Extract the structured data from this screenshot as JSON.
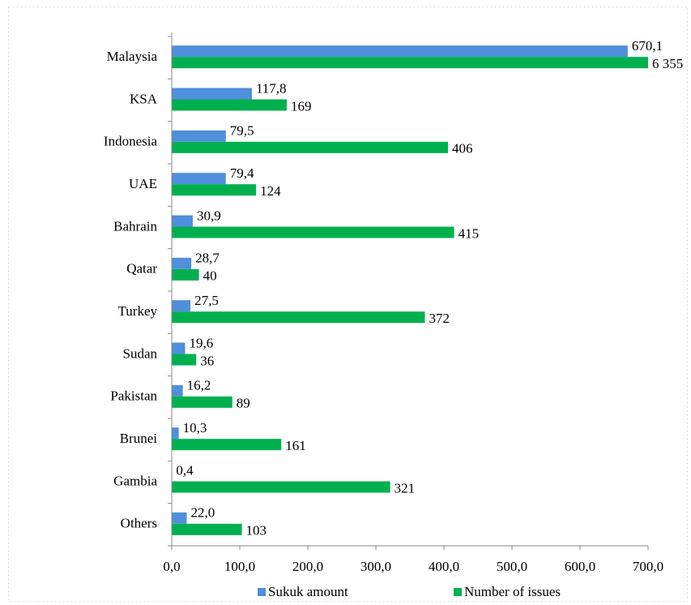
{
  "chart_data": {
    "type": "bar",
    "orientation": "horizontal",
    "categories": [
      "Malaysia",
      "KSA",
      "Indonesia",
      "UAE",
      "Bahrain",
      "Qatar",
      "Turkey",
      "Sudan",
      "Pakistan",
      "Brunei",
      "Gambia",
      "Others"
    ],
    "series": [
      {
        "name": "Sukuk amount",
        "color": "#4f8fdb",
        "values": [
          670.1,
          117.8,
          79.5,
          79.4,
          30.9,
          28.7,
          27.5,
          19.6,
          16.2,
          10.3,
          0.4,
          22.0
        ],
        "value_labels": [
          "670,1",
          "117,8",
          "79,5",
          "79,4",
          "30,9",
          "28,7",
          "27,5",
          "19,6",
          "16,2",
          "10,3",
          "0,4",
          "22,0"
        ]
      },
      {
        "name": "Number of issues",
        "color": "#00b04f",
        "values": [
          6355,
          169,
          406,
          124,
          415,
          40,
          372,
          36,
          89,
          161,
          321,
          103
        ],
        "value_labels": [
          "6 355",
          "169",
          "406",
          "124",
          "415",
          "40",
          "372",
          "36",
          "89",
          "161",
          "321",
          "103"
        ]
      }
    ],
    "xlim": [
      0,
      700
    ],
    "xticks": [
      {
        "value": 0,
        "label": "0,0"
      },
      {
        "value": 100,
        "label": "100,0"
      },
      {
        "value": 200,
        "label": "200,0"
      },
      {
        "value": 300,
        "label": "300,0"
      },
      {
        "value": 400,
        "label": "400,0"
      },
      {
        "value": 500,
        "label": "500,0"
      },
      {
        "value": 600,
        "label": "600,0"
      },
      {
        "value": 700,
        "label": "700,0"
      }
    ],
    "grid": false,
    "legend": "bottom"
  }
}
